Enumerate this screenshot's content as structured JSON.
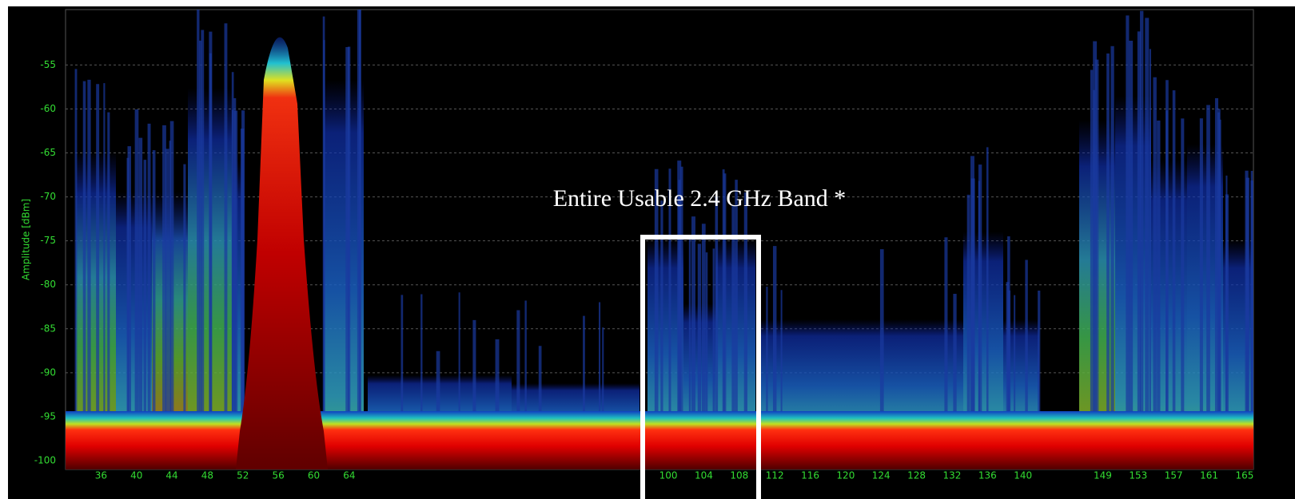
{
  "chart_data": {
    "type": "spectrum",
    "y_label": "Amplitude [dBm]",
    "annotation": "Entire Usable 2.4 GHz Band *",
    "ylim": [
      -101,
      -48.7
    ],
    "yticks": [
      -100,
      -95,
      -90,
      -85,
      -80,
      -75,
      -70,
      -65,
      -60,
      -55
    ],
    "xlim": [
      32,
      166
    ],
    "xticks": [
      36,
      40,
      44,
      48,
      52,
      56,
      60,
      64,
      100,
      104,
      108,
      112,
      116,
      120,
      124,
      128,
      132,
      136,
      140,
      149,
      153,
      157,
      161,
      165
    ],
    "grid": true,
    "color": "#33dd33"
  }
}
